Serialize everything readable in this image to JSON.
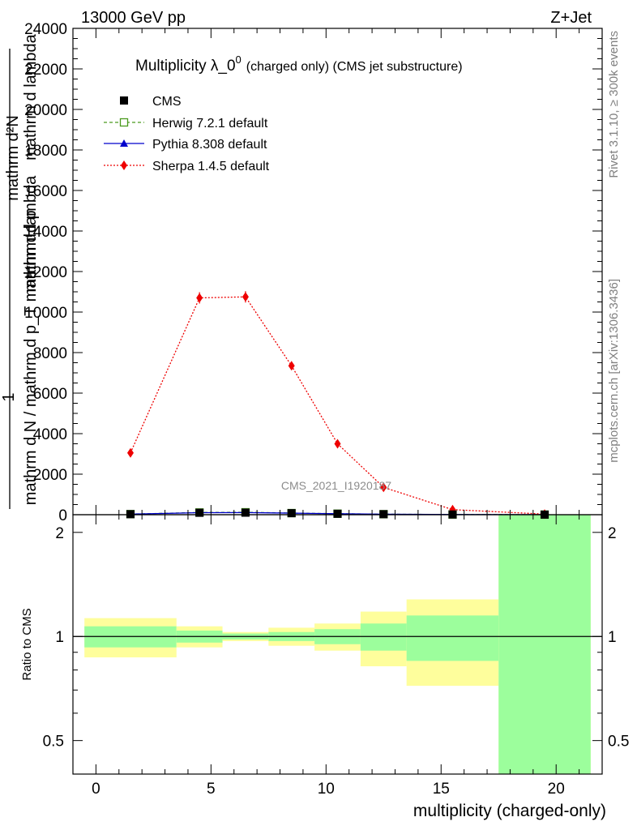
{
  "header": {
    "energy_label": "13000 GeV pp",
    "process_label": "Z+Jet"
  },
  "side_labels": {
    "rivet": "Rivet 3.1.10, ≥ 300k events",
    "mcplots": "mcplots.cern.ch [arXiv:1306.3436]"
  },
  "chart_data": {
    "type": "line",
    "title": "Multiplicity λ_0",
    "title_sup": "0",
    "title_suffix": "(charged only) (CMS jet substructure)",
    "watermark": "CMS_2021_I1920187",
    "xlabel": "multiplicity (charged-only)",
    "ylabel_main": [
      "mathrm d²N",
      "mathrm d p",
      "mathrm d lambda",
      "mathrm d N / mathrm d p_T mathrm d lambda",
      "1"
    ],
    "ylabel_ratio": "Ratio to CMS",
    "xlim": [
      -1,
      22
    ],
    "ylim": [
      0,
      24000
    ],
    "ratio_ylim": [
      0.4,
      2.25
    ],
    "x_ticks": [
      0,
      5,
      10,
      15,
      20
    ],
    "x_tick_labels": [
      "0",
      "5",
      "10",
      "15",
      "20"
    ],
    "y_ticks": [
      0,
      2000,
      4000,
      6000,
      8000,
      10000,
      12000,
      14000,
      16000,
      18000,
      20000,
      22000,
      24000
    ],
    "y_tick_labels": [
      "0",
      "2000",
      "4000",
      "6000",
      "8000",
      "10000",
      "12000",
      "14000",
      "16000",
      "18000",
      "20000",
      "22000",
      "24000"
    ],
    "ratio_ticks": [
      0.5,
      1,
      2
    ],
    "ratio_tick_labels": [
      "0.5",
      "1",
      "2"
    ],
    "legend": [
      "CMS",
      "Herwig 7.2.1 default",
      "Pythia 8.308 default",
      "Sherpa 1.4.5 default"
    ],
    "legend_position": "top-left",
    "bin_edges": [
      -0.5,
      3.5,
      5.5,
      7.5,
      9.5,
      11.5,
      13.5,
      17.5,
      21.5
    ],
    "bin_centers": [
      1.5,
      4.5,
      6.5,
      8.5,
      10.5,
      12.5,
      15.5,
      19.5
    ],
    "series": [
      {
        "name": "CMS",
        "color": "#000000",
        "values": [
          25,
          95,
          100,
          75,
          45,
          25,
          10,
          4
        ]
      },
      {
        "name": "Herwig 7.2.1 default",
        "color": "#4a9a1e",
        "values": [
          30,
          110,
          120,
          80,
          50,
          25,
          10,
          4
        ]
      },
      {
        "name": "Pythia 8.308 default",
        "color": "#0000cc",
        "values": [
          28,
          100,
          105,
          78,
          47,
          24,
          10,
          4
        ]
      },
      {
        "name": "Sherpa 1.4.5 default",
        "color": "#ee0000",
        "values": [
          3050,
          10700,
          10750,
          7350,
          3500,
          1350,
          250,
          30
        ],
        "errors": [
          60,
          280,
          280,
          180,
          80,
          40,
          15,
          5
        ]
      }
    ],
    "ratio_bands": {
      "inner": [
        [
          0.93,
          1.07
        ],
        [
          0.96,
          1.04
        ],
        [
          0.98,
          1.02
        ],
        [
          0.97,
          1.03
        ],
        [
          0.95,
          1.05
        ],
        [
          0.91,
          1.09
        ],
        [
          0.85,
          1.15
        ],
        [
          0.4,
          2.25
        ]
      ],
      "outer": [
        [
          0.87,
          1.13
        ],
        [
          0.93,
          1.07
        ],
        [
          0.97,
          1.03
        ],
        [
          0.94,
          1.06
        ],
        [
          0.91,
          1.09
        ],
        [
          0.82,
          1.18
        ],
        [
          0.72,
          1.28
        ],
        [
          0.4,
          2.25
        ]
      ],
      "inner_color": "#9cfe9c",
      "outer_color": "#fefe9c"
    }
  }
}
